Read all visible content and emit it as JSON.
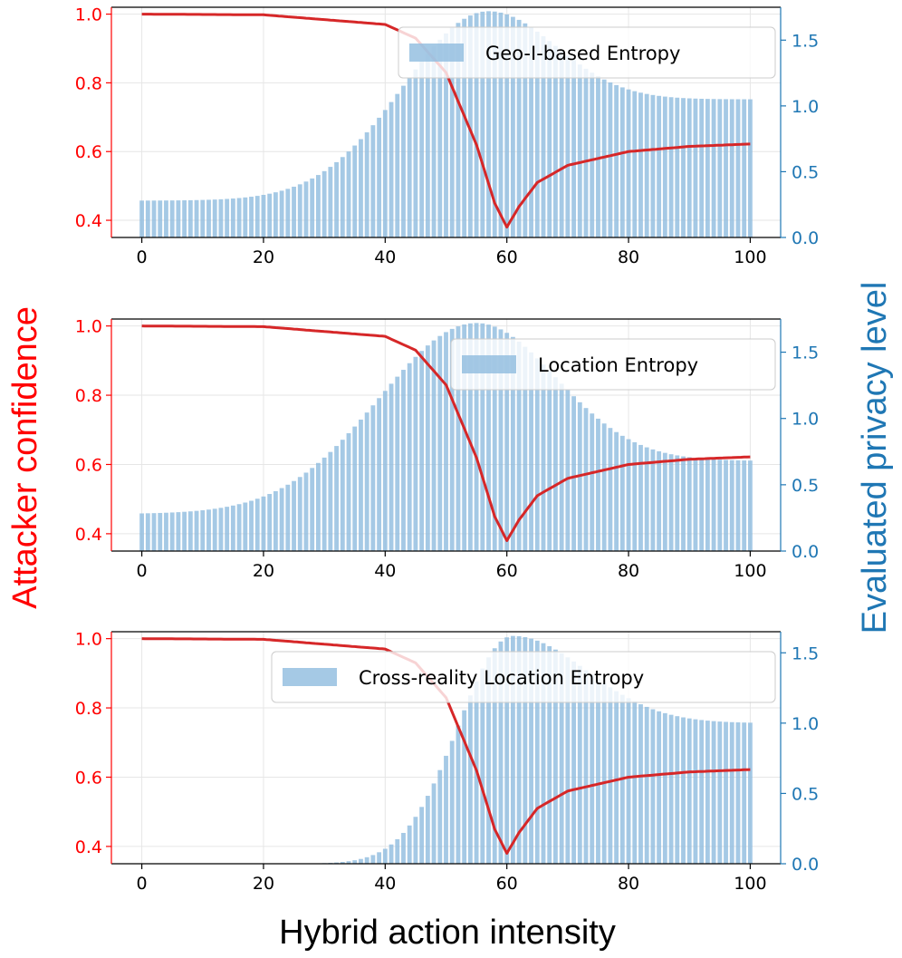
{
  "figure": {
    "xlabel": "Hybrid action intensity",
    "ylabel_left": "Attacker confidence",
    "ylabel_right": "Evaluated privacy level"
  },
  "colors": {
    "confidence_line": "#d62728",
    "bars": "#8fbcdf",
    "left_axis": "#ff0000",
    "right_axis": "#1f77b4"
  },
  "chart_data": [
    {
      "type": "bar+line",
      "legend": "Geo-I-based Entropy",
      "legend_position": "upper-right",
      "xlim": [
        -5,
        105
      ],
      "xticks": [
        "0",
        "20",
        "40",
        "60",
        "80",
        "100"
      ],
      "ylim_left": [
        0.35,
        1.02
      ],
      "yticks_left": [
        "0.4",
        "0.6",
        "0.8",
        "1.0"
      ],
      "ylim_right": [
        0,
        1.75
      ],
      "yticks_right": [
        "0.0",
        "0.5",
        "1.0",
        "1.5"
      ],
      "bars": {
        "x_start": 0,
        "x_end": 100,
        "count": 101,
        "start_value": 0.28,
        "peak_x": 57,
        "peak_value": 1.72,
        "end_value": 1.05,
        "rise_width": 14,
        "fall_width": 11
      },
      "line": {
        "name": "Attacker confidence",
        "x": [
          0,
          20,
          40,
          45,
          50,
          55,
          58,
          60,
          62,
          65,
          70,
          80,
          90,
          100
        ],
        "y": [
          1.0,
          0.998,
          0.97,
          0.93,
          0.83,
          0.62,
          0.45,
          0.38,
          0.44,
          0.51,
          0.56,
          0.6,
          0.615,
          0.622
        ]
      }
    },
    {
      "type": "bar+line",
      "legend": "Location Entropy",
      "legend_position": "upper-right",
      "xlim": [
        -5,
        105
      ],
      "xticks": [
        "0",
        "20",
        "40",
        "60",
        "80",
        "100"
      ],
      "ylim_left": [
        0.35,
        1.02
      ],
      "yticks_left": [
        "0.4",
        "0.6",
        "0.8",
        "1.0"
      ],
      "ylim_right": [
        0,
        1.75
      ],
      "yticks_right": [
        "0.0",
        "0.5",
        "1.0",
        "1.5"
      ],
      "bars": {
        "x_start": 0,
        "x_end": 100,
        "count": 101,
        "start_value": 0.28,
        "peak_x": 55,
        "peak_value": 1.72,
        "end_value": 0.68,
        "rise_width": 16,
        "fall_width": 13
      },
      "line": {
        "name": "Attacker confidence",
        "x": [
          0,
          20,
          40,
          45,
          50,
          55,
          58,
          60,
          62,
          65,
          70,
          80,
          90,
          100
        ],
        "y": [
          1.0,
          0.998,
          0.97,
          0.93,
          0.83,
          0.62,
          0.45,
          0.38,
          0.44,
          0.51,
          0.56,
          0.6,
          0.615,
          0.622
        ]
      }
    },
    {
      "type": "bar+line",
      "legend": "Cross-reality Location Entropy",
      "legend_position": "upper-right",
      "xlim": [
        -5,
        105
      ],
      "xticks": [
        "0",
        "20",
        "40",
        "60",
        "80",
        "100"
      ],
      "ylim_left": [
        0.35,
        1.02
      ],
      "yticks_left": [
        "0.4",
        "0.6",
        "0.8",
        "1.0"
      ],
      "ylim_right": [
        0,
        1.65
      ],
      "yticks_right": [
        "0.0",
        "0.5",
        "1.0",
        "1.5"
      ],
      "bars": {
        "x_start": 0,
        "x_end": 100,
        "count": 101,
        "start_value": 0.0,
        "peak_x": 61,
        "peak_value": 1.62,
        "end_value": 1.0,
        "rise_width": 9,
        "fall_width": 12
      },
      "line": {
        "name": "Attacker confidence",
        "x": [
          0,
          20,
          40,
          45,
          50,
          55,
          58,
          60,
          62,
          65,
          70,
          80,
          90,
          100
        ],
        "y": [
          1.0,
          0.998,
          0.97,
          0.93,
          0.83,
          0.62,
          0.45,
          0.38,
          0.44,
          0.51,
          0.56,
          0.6,
          0.615,
          0.622
        ]
      }
    }
  ]
}
